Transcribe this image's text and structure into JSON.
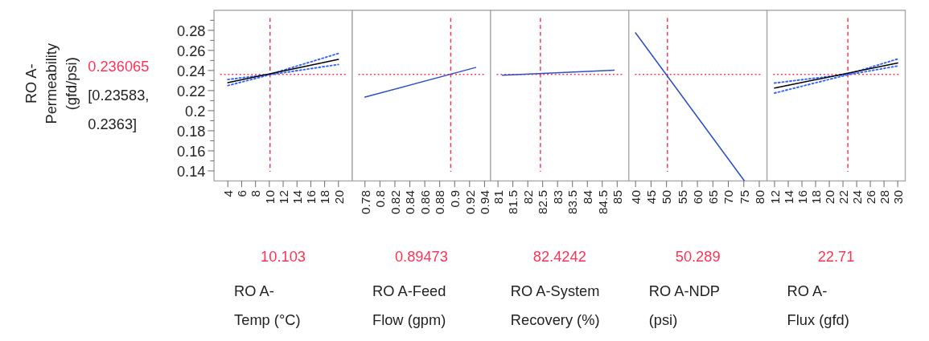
{
  "chart_data": [
    {
      "type": "line",
      "xlabel": "RO A-\nTemp (°C)",
      "ylabel": "RO A-\nPermeability\n(gfd/psi)",
      "annotations": [
        "[0.23583,",
        "0.2363]"
      ],
      "xlim": [
        2,
        22
      ],
      "xticks": [
        4,
        6,
        8,
        10,
        12,
        14,
        16,
        18,
        20
      ],
      "ylim": [
        0.13,
        0.3
      ],
      "yticks": [
        0.14,
        0.16,
        0.18,
        0.2,
        0.22,
        0.24,
        0.26,
        0.28,
        {
          "value": 0.15,
          "label": null
        },
        {
          "value": 0.17,
          "label": null
        },
        {
          "value": 0.19,
          "label": null
        },
        {
          "value": 0.21,
          "label": null
        },
        {
          "value": 0.23,
          "label": null
        },
        {
          "value": 0.25,
          "label": null
        },
        {
          "value": 0.27,
          "label": null
        },
        {
          "value": 0.29,
          "label": null
        }
      ],
      "series": [
        {
          "color": "#3366ff",
          "line_style": "dotted",
          "x": [
            4,
            10.103,
            20
          ],
          "values": [
            0.225,
            0.2358,
            0.246
          ]
        },
        {
          "color": "#3366ff",
          "line_style": "dotted",
          "x": [
            4,
            10.103,
            20
          ],
          "values": [
            0.231,
            0.2363,
            0.257
          ]
        },
        {
          "color": "#000000",
          "line_style": "solid",
          "x": [
            4,
            20
          ],
          "values": [
            0.228,
            0.251
          ]
        }
      ],
      "ref_lines": [
        {
          "axis": "x",
          "value": 10.103,
          "label": "10.103",
          "color": "#ff3355",
          "line_style": "dashed"
        },
        {
          "axis": "y",
          "value": 0.236065,
          "label": "0.236065",
          "color": "#ff3355",
          "line_style": "dotted"
        }
      ]
    },
    {
      "type": "line",
      "xlabel": "RO A-Feed\nFlow (gpm)",
      "tick_labels": "x",
      "xlim": [
        0.763,
        0.948
      ],
      "xticks": [
        0.78,
        0.8,
        0.82,
        0.84,
        0.86,
        0.88,
        0.9,
        0.92,
        0.94
      ],
      "ylim": [
        0.13,
        0.3
      ],
      "series": [
        {
          "color": "#2b50c8",
          "line_style": "solid",
          "x": [
            0.78,
            0.928
          ],
          "values": [
            0.2135,
            0.243
          ]
        }
      ],
      "ref_lines": [
        {
          "axis": "x",
          "value": 0.89473,
          "label": "0.89473",
          "color": "#ff3355",
          "line_style": "dashed"
        },
        {
          "axis": "y",
          "value": 0.236065,
          "color": "#ff3355",
          "line_style": "dotted"
        }
      ]
    },
    {
      "type": "line",
      "xlabel": "RO A-System\nRecovery (%)",
      "tick_labels": "x",
      "xlim": [
        80.75,
        85.39
      ],
      "xticks": [
        81,
        81.5,
        82,
        82.5,
        83,
        83.5,
        84,
        84.5,
        85
      ],
      "ylim": [
        0.13,
        0.3
      ],
      "series": [
        {
          "color": "#2b50c8",
          "line_style": "solid",
          "x": [
            81.15,
            84.9
          ],
          "values": [
            0.2353,
            0.2403
          ]
        }
      ],
      "ref_lines": [
        {
          "axis": "x",
          "value": 82.4242,
          "label": "82.4242",
          "color": "#ff3355",
          "line_style": "dashed"
        },
        {
          "axis": "y",
          "value": 0.236065,
          "color": "#ff3355",
          "line_style": "dotted"
        }
      ]
    },
    {
      "type": "line",
      "xlabel": "RO A-NDP\n(psi)",
      "tick_labels": "x",
      "xlim": [
        37.8,
        82.5
      ],
      "xticks": [
        40,
        45,
        50,
        55,
        60,
        65,
        70,
        75,
        80
      ],
      "ylim": [
        0.13,
        0.3
      ],
      "series": [
        {
          "color": "#2b50c8",
          "line_style": "solid",
          "x": [
            40,
            75.2
          ],
          "values": [
            0.2775,
            0.13
          ]
        }
      ],
      "ref_lines": [
        {
          "axis": "x",
          "value": 50.289,
          "label": "50.289",
          "color": "#ff3355",
          "line_style": "dashed"
        },
        {
          "axis": "y",
          "value": 0.236065,
          "color": "#ff3355",
          "line_style": "dotted"
        }
      ]
    },
    {
      "type": "line",
      "xlabel": "RO A-\nFlux (gfd)",
      "tick_labels": "x",
      "xlim": [
        10.9,
        31.1
      ],
      "xticks": [
        12,
        14,
        16,
        18,
        20,
        22,
        24,
        26,
        28,
        30
      ],
      "ylim": [
        0.13,
        0.3
      ],
      "series": [
        {
          "color": "#3366ff",
          "line_style": "dotted",
          "x": [
            12,
            22.71,
            30
          ],
          "values": [
            0.2175,
            0.2358,
            0.2445
          ]
        },
        {
          "color": "#3366ff",
          "line_style": "dotted",
          "x": [
            12,
            22.71,
            30
          ],
          "values": [
            0.2275,
            0.2363,
            0.2515
          ]
        },
        {
          "color": "#000000",
          "line_style": "solid",
          "x": [
            12,
            30
          ],
          "values": [
            0.2225,
            0.2475
          ]
        }
      ],
      "ref_lines": [
        {
          "axis": "x",
          "value": 22.71,
          "label": "22.71",
          "color": "#ff3355",
          "line_style": "dashed"
        },
        {
          "axis": "y",
          "value": 0.236065,
          "color": "#ff3355",
          "line_style": "dotted"
        }
      ]
    }
  ]
}
